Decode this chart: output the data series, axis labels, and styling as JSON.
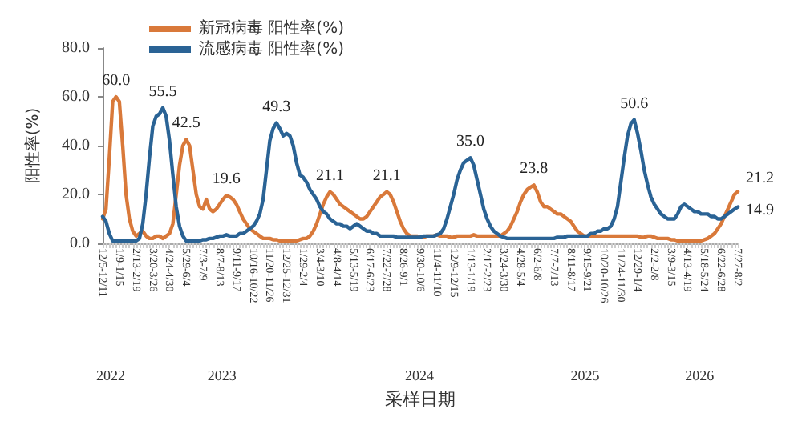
{
  "chart_data": {
    "type": "line",
    "xlabel": "采样日期",
    "ylabel": "阳性率(%)",
    "legend": "top",
    "grid": false,
    "line_style": "solid",
    "ylim": [
      0,
      80
    ],
    "yticks": [
      {
        "value": 0,
        "label": "0.0"
      },
      {
        "value": 20,
        "label": "20.0"
      },
      {
        "value": 40,
        "label": "40.0"
      },
      {
        "value": 60,
        "label": "60.0"
      },
      {
        "value": 80,
        "label": "80.0"
      }
    ],
    "categories": [
      "12/5-12/11",
      null,
      null,
      null,
      null,
      "1/9-1/15",
      null,
      null,
      null,
      null,
      "2/13-2/19",
      null,
      null,
      null,
      null,
      "3/20-3/26",
      null,
      null,
      null,
      null,
      "4/24-4/30",
      null,
      null,
      null,
      null,
      "5/29-6/4",
      null,
      null,
      null,
      null,
      "7/3-7/9",
      null,
      null,
      null,
      null,
      "8/7-8/13",
      null,
      null,
      null,
      null,
      "9/11-9/17",
      null,
      null,
      null,
      null,
      "10/16-10/22",
      null,
      null,
      null,
      null,
      "11/20-11/26",
      null,
      null,
      null,
      null,
      "12/25-12/31",
      null,
      null,
      null,
      null,
      "1/29-2/4",
      null,
      null,
      null,
      null,
      "3/4-3/10",
      null,
      null,
      null,
      null,
      "4/8-4/14",
      null,
      null,
      null,
      null,
      "5/13-5/19",
      null,
      null,
      null,
      null,
      "6/17-6/23",
      null,
      null,
      null,
      null,
      "7/22-7/28",
      null,
      null,
      null,
      null,
      "8/26-9/1",
      null,
      null,
      null,
      null,
      "9/30-10/6",
      null,
      null,
      null,
      null,
      "11/4-11/10",
      null,
      null,
      null,
      null,
      "12/9-12/15",
      null,
      null,
      null,
      null,
      "1/13-1/19",
      null,
      null,
      null,
      null,
      "2/17-2/23",
      null,
      null,
      null,
      null,
      "3/24-3/30",
      null,
      null,
      null,
      null,
      "4/28-5/4",
      null,
      null,
      null,
      null,
      "6/2-6/8",
      null,
      null,
      null,
      null,
      "7/7-7/13",
      null,
      null,
      null,
      null,
      "8/11-8/17",
      null,
      null,
      null,
      null,
      "9/15-9/21",
      null,
      null,
      null,
      null,
      "10/20-10/26",
      null,
      null,
      null,
      null,
      "11/24-11/30",
      null,
      null,
      null,
      null,
      "12/29-1/4",
      null,
      null,
      null,
      null,
      "2/2-2/8",
      null,
      null,
      null,
      null,
      "3/9-3/15",
      null,
      null,
      null,
      null,
      "4/13-4/19",
      null,
      null,
      null,
      null,
      "5/18-5/24",
      null,
      null,
      null,
      null,
      "6/22-6/28",
      null,
      null,
      null,
      null,
      "7/27-8/2"
    ],
    "series": [
      {
        "name": "新冠病毒 阳性率(%)",
        "color": "#d9793a",
        "values": [
          10,
          14,
          35,
          58,
          60,
          58,
          40,
          20,
          10,
          5,
          3,
          4,
          5,
          3,
          2,
          2,
          3,
          3,
          2,
          3,
          4,
          8,
          20,
          32,
          40,
          42.5,
          40,
          30,
          20,
          15,
          14,
          18,
          14,
          13,
          14,
          16,
          18,
          19.6,
          19,
          18,
          16,
          13,
          10,
          8,
          6,
          5,
          4,
          3,
          2,
          2,
          2,
          1.5,
          1.5,
          1,
          1,
          1,
          1,
          1,
          1,
          1.5,
          2,
          2,
          3,
          5,
          8,
          12,
          16,
          19,
          21.1,
          20,
          18,
          16,
          15,
          14,
          13,
          12,
          11,
          10,
          10,
          11,
          13,
          15,
          17,
          19,
          20,
          21.1,
          20,
          17,
          13,
          9,
          6,
          4,
          3,
          3,
          3,
          2.5,
          2.5,
          3,
          3,
          3,
          3.5,
          3,
          3,
          3,
          2.5,
          2.5,
          3,
          3,
          3,
          3,
          3,
          3.5,
          3,
          3,
          3,
          3,
          3,
          3,
          3,
          3,
          4,
          5,
          7,
          10,
          13,
          17,
          20,
          22,
          23,
          23.8,
          21,
          17,
          15,
          15,
          14,
          13,
          12,
          12,
          11,
          10,
          9,
          7,
          5,
          4,
          3,
          3,
          3,
          3,
          3,
          3,
          3,
          3,
          3,
          3,
          3,
          3,
          3,
          3,
          3,
          3,
          3,
          2.5,
          2.5,
          3,
          3,
          2.5,
          2,
          2,
          2,
          2,
          1.5,
          1.5,
          1,
          1,
          1,
          1,
          1,
          1,
          1,
          1,
          1.5,
          2,
          3,
          4,
          6,
          8,
          11,
          14,
          17,
          20,
          21.2
        ],
        "value_labels": [
          null,
          null,
          null,
          null,
          "60.0",
          null,
          null,
          null,
          null,
          null,
          null,
          null,
          null,
          null,
          null,
          null,
          null,
          null,
          null,
          null,
          null,
          null,
          null,
          null,
          null,
          "42.5",
          null,
          null,
          null,
          null,
          null,
          null,
          null,
          null,
          null,
          null,
          null,
          "19.6",
          null,
          null,
          null,
          null,
          null,
          null,
          null,
          null,
          null,
          null,
          null,
          null,
          null,
          null,
          null,
          null,
          null,
          null,
          null,
          null,
          null,
          null,
          null,
          null,
          null,
          null,
          null,
          null,
          null,
          null,
          "21.1",
          null,
          null,
          null,
          null,
          null,
          null,
          null,
          null,
          null,
          null,
          null,
          null,
          null,
          null,
          null,
          null,
          "21.1",
          null,
          null,
          null,
          null,
          null,
          null,
          null,
          null,
          null,
          null,
          null,
          null,
          null,
          null,
          null,
          null,
          null,
          null,
          null,
          null,
          null,
          null,
          null,
          null,
          null,
          null,
          null,
          null,
          null,
          null,
          null,
          null,
          null,
          null,
          null,
          null,
          null,
          null,
          null,
          null,
          null,
          null,
          null,
          "23.8",
          null,
          null,
          null,
          null,
          null,
          null,
          null,
          null,
          null,
          null,
          null,
          null,
          null,
          null,
          null,
          null,
          null,
          null,
          null,
          null,
          null,
          null,
          null,
          null,
          null,
          null,
          null,
          null,
          null,
          null,
          null,
          null,
          null,
          null,
          null,
          null,
          null,
          null,
          null,
          null,
          null,
          null,
          null,
          null,
          null,
          null,
          null,
          null,
          null,
          null,
          null,
          null,
          null,
          null,
          null,
          null,
          null,
          null,
          null,
          null,
          "21.2"
        ]
      },
      {
        "name": "流感病毒 阳性率(%)",
        "color": "#2a6395",
        "values": [
          11,
          9,
          4,
          1,
          1,
          1,
          1,
          1,
          1,
          1,
          1,
          2,
          8,
          20,
          35,
          48,
          52,
          53,
          55.5,
          52,
          42,
          28,
          15,
          7,
          3,
          1,
          1,
          1,
          1,
          1,
          1.5,
          1.5,
          2,
          2,
          2.5,
          3,
          3,
          3.5,
          3,
          3,
          3,
          4,
          4,
          5,
          6,
          7,
          9,
          12,
          18,
          30,
          42,
          47,
          49.3,
          47,
          44,
          45,
          44,
          40,
          33,
          28,
          27,
          25,
          22,
          20,
          18,
          15,
          13,
          12,
          10,
          9,
          8,
          8,
          7,
          7,
          6,
          7,
          8,
          7,
          6,
          5,
          5,
          4,
          4,
          3,
          3,
          3,
          3,
          3,
          2.5,
          2.5,
          2.5,
          2.5,
          2.5,
          2.5,
          2.5,
          2.5,
          3,
          3,
          3,
          3,
          3.5,
          4,
          6,
          10,
          15,
          20,
          26,
          30,
          33,
          34,
          35,
          32,
          26,
          20,
          14,
          10,
          7,
          5,
          4,
          3,
          2.5,
          2,
          2,
          2,
          2,
          2,
          2,
          2,
          2,
          2,
          2,
          2,
          2,
          2,
          2,
          2,
          2.5,
          2.5,
          2.5,
          3,
          3,
          3,
          3,
          3,
          3,
          3,
          4,
          4,
          5,
          5,
          6,
          6,
          7,
          10,
          15,
          25,
          35,
          44,
          49,
          50.6,
          45,
          38,
          30,
          24,
          19,
          16,
          14,
          12,
          11,
          10,
          10,
          10,
          12,
          15,
          16,
          15,
          14,
          13,
          13,
          12,
          12,
          12,
          11,
          11,
          10,
          10,
          11,
          12,
          13,
          14,
          14.9
        ],
        "value_labels": [
          null,
          null,
          null,
          null,
          null,
          null,
          null,
          null,
          null,
          null,
          null,
          null,
          null,
          null,
          null,
          null,
          null,
          null,
          "55.5",
          null,
          null,
          null,
          null,
          null,
          null,
          null,
          null,
          null,
          null,
          null,
          null,
          null,
          null,
          null,
          null,
          null,
          null,
          null,
          null,
          null,
          null,
          null,
          null,
          null,
          null,
          null,
          null,
          null,
          null,
          null,
          null,
          null,
          "49.3",
          null,
          null,
          null,
          null,
          null,
          null,
          null,
          null,
          null,
          null,
          null,
          null,
          null,
          null,
          null,
          null,
          null,
          null,
          null,
          null,
          null,
          null,
          null,
          null,
          null,
          null,
          null,
          null,
          null,
          null,
          null,
          null,
          null,
          null,
          null,
          null,
          null,
          null,
          null,
          null,
          null,
          null,
          null,
          null,
          null,
          null,
          null,
          null,
          null,
          null,
          null,
          null,
          null,
          null,
          null,
          null,
          null,
          "35.0",
          null,
          null,
          null,
          null,
          null,
          null,
          null,
          null,
          null,
          null,
          null,
          null,
          null,
          null,
          null,
          null,
          null,
          null,
          null,
          null,
          null,
          null,
          null,
          null,
          null,
          null,
          null,
          null,
          null,
          null,
          null,
          null,
          null,
          null,
          null,
          null,
          null,
          null,
          null,
          null,
          null,
          null,
          null,
          null,
          null,
          null,
          null,
          null,
          "50.6",
          null,
          null,
          null,
          null,
          null,
          null,
          null,
          null,
          null,
          null,
          null,
          null,
          null,
          null,
          null,
          null,
          null,
          null,
          null,
          null,
          null,
          null,
          null,
          null,
          null,
          null,
          null,
          null,
          null,
          null,
          "14.9"
        ]
      }
    ],
    "annotations": [
      "2022",
      "2023",
      "2024",
      "2025",
      "2026"
    ]
  }
}
